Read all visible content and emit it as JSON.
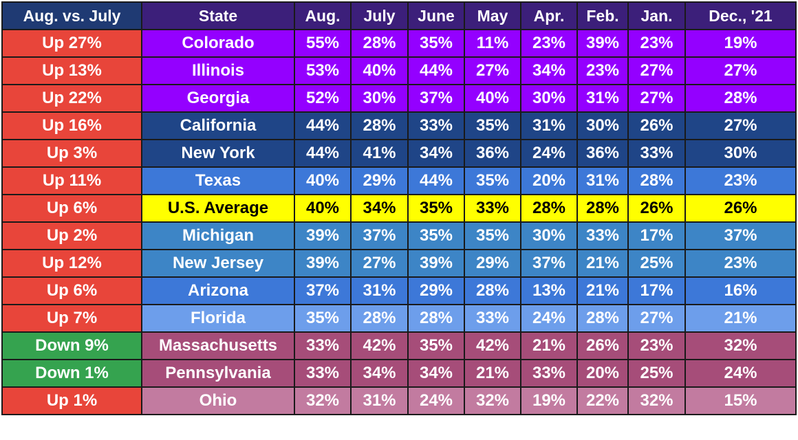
{
  "colors": {
    "up": "#e8453a",
    "down": "#35a34f",
    "header_compare": "#1f3a73",
    "header_main": "#3c1f7a"
  },
  "headers": {
    "compare": "Aug. vs. July",
    "state": "State",
    "months": [
      "Aug.",
      "July",
      "June",
      "May",
      "Apr.",
      "Feb.",
      "Jan.",
      "Dec., '21"
    ]
  },
  "rows": [
    {
      "change": "Up 27%",
      "state": "Colorado",
      "values": [
        "55%",
        "28%",
        "35%",
        "11%",
        "23%",
        "39%",
        "23%",
        "19%"
      ],
      "color": "#9400ff",
      "text_color": "#ffffff",
      "change_color": "#e8453a"
    },
    {
      "change": "Up 13%",
      "state": "Illinois",
      "values": [
        "53%",
        "40%",
        "44%",
        "27%",
        "34%",
        "23%",
        "27%",
        "27%"
      ],
      "color": "#9400ff",
      "text_color": "#ffffff",
      "change_color": "#e8453a"
    },
    {
      "change": "Up 22%",
      "state": "Georgia",
      "values": [
        "52%",
        "30%",
        "37%",
        "40%",
        "30%",
        "31%",
        "27%",
        "28%"
      ],
      "color": "#9400ff",
      "text_color": "#ffffff",
      "change_color": "#e8453a"
    },
    {
      "change": "Up 16%",
      "state": "California",
      "values": [
        "44%",
        "28%",
        "33%",
        "35%",
        "31%",
        "30%",
        "26%",
        "27%"
      ],
      "color": "#1f4587",
      "text_color": "#ffffff",
      "change_color": "#e8453a"
    },
    {
      "change": "Up 3%",
      "state": "New York",
      "values": [
        "44%",
        "41%",
        "34%",
        "36%",
        "24%",
        "36%",
        "33%",
        "30%"
      ],
      "color": "#1f4587",
      "text_color": "#ffffff",
      "change_color": "#e8453a"
    },
    {
      "change": "Up 11%",
      "state": "Texas",
      "values": [
        "40%",
        "29%",
        "44%",
        "35%",
        "20%",
        "31%",
        "28%",
        "23%"
      ],
      "color": "#3d78d8",
      "text_color": "#ffffff",
      "change_color": "#e8453a"
    },
    {
      "change": "Up 6%",
      "state": "U.S. Average",
      "values": [
        "40%",
        "34%",
        "35%",
        "33%",
        "28%",
        "28%",
        "26%",
        "26%"
      ],
      "color": "#ffff00",
      "text_color": "#000000",
      "change_color": "#e8453a"
    },
    {
      "change": "Up 2%",
      "state": "Michigan",
      "values": [
        "39%",
        "37%",
        "35%",
        "35%",
        "30%",
        "33%",
        "17%",
        "37%"
      ],
      "color": "#3d85c6",
      "text_color": "#ffffff",
      "change_color": "#e8453a"
    },
    {
      "change": "Up 12%",
      "state": "New Jersey",
      "values": [
        "39%",
        "27%",
        "39%",
        "29%",
        "37%",
        "21%",
        "25%",
        "23%"
      ],
      "color": "#3d85c6",
      "text_color": "#ffffff",
      "change_color": "#e8453a"
    },
    {
      "change": "Up 6%",
      "state": "Arizona",
      "values": [
        "37%",
        "31%",
        "29%",
        "28%",
        "13%",
        "21%",
        "17%",
        "16%"
      ],
      "color": "#3d78d8",
      "text_color": "#ffffff",
      "change_color": "#e8453a"
    },
    {
      "change": "Up 7%",
      "state": "Florida",
      "values": [
        "35%",
        "28%",
        "28%",
        "33%",
        "24%",
        "28%",
        "27%",
        "21%"
      ],
      "color": "#6d9eeb",
      "text_color": "#ffffff",
      "change_color": "#e8453a"
    },
    {
      "change": "Down 9%",
      "state": "Massachusetts",
      "values": [
        "33%",
        "42%",
        "35%",
        "42%",
        "21%",
        "26%",
        "23%",
        "32%"
      ],
      "color": "#a64d79",
      "text_color": "#ffffff",
      "change_color": "#35a34f"
    },
    {
      "change": "Down 1%",
      "state": "Pennsylvania",
      "values": [
        "33%",
        "34%",
        "34%",
        "21%",
        "33%",
        "20%",
        "25%",
        "24%"
      ],
      "color": "#a64d79",
      "text_color": "#ffffff",
      "change_color": "#35a34f"
    },
    {
      "change": "Up 1%",
      "state": "Ohio",
      "values": [
        "32%",
        "31%",
        "24%",
        "32%",
        "19%",
        "22%",
        "32%",
        "15%"
      ],
      "color": "#c27ba0",
      "text_color": "#ffffff",
      "change_color": "#e8453a"
    }
  ]
}
